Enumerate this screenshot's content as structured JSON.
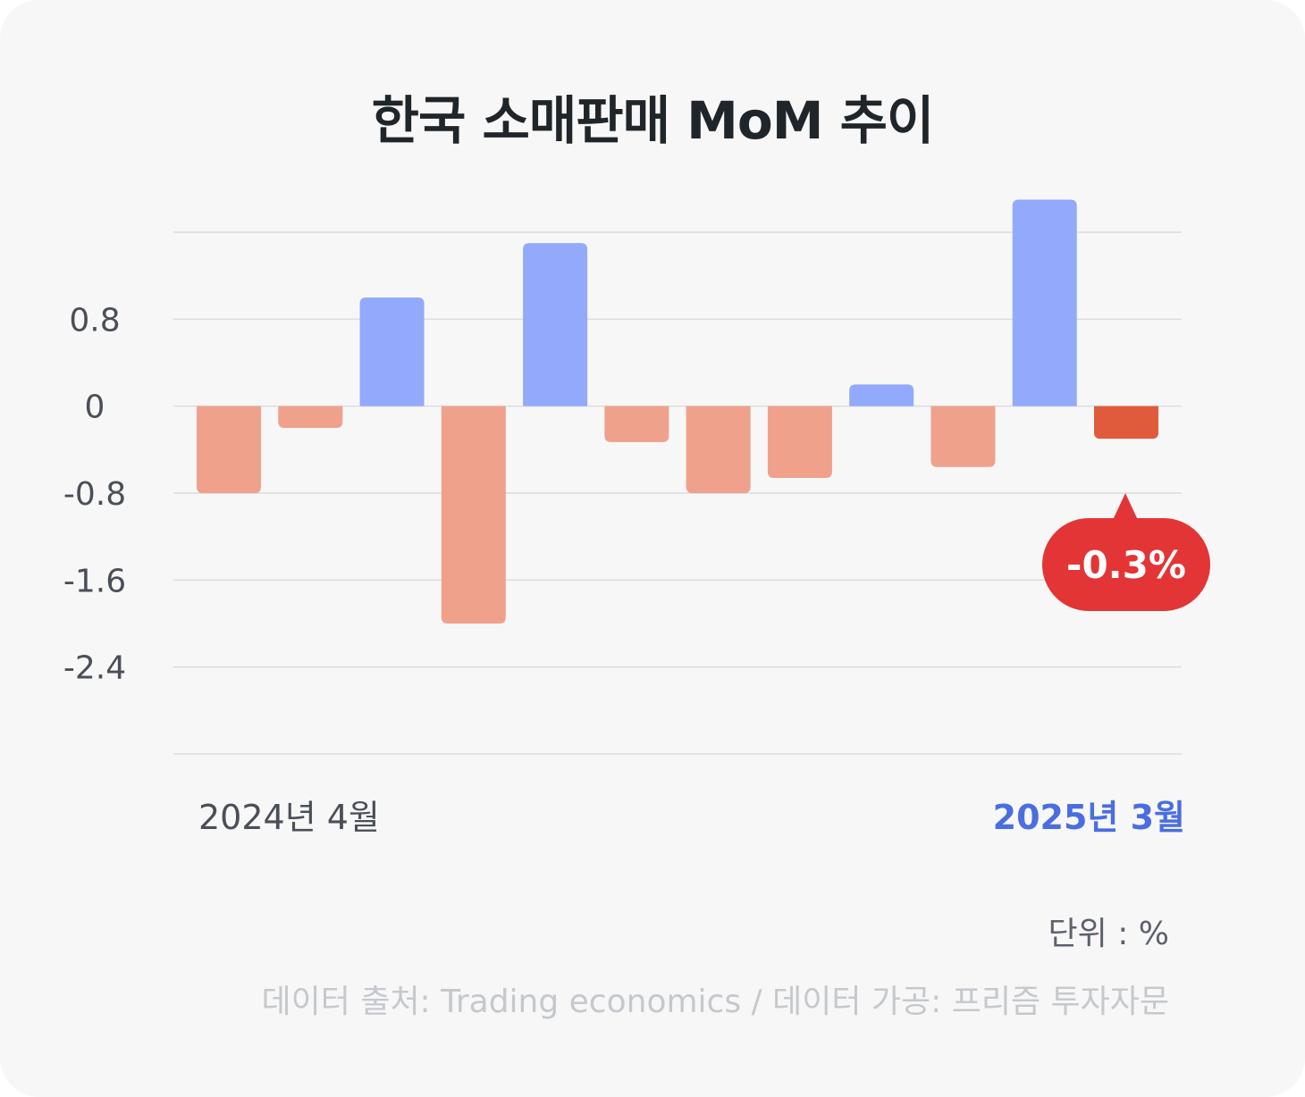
{
  "title": "한국 소매판매 MoM 추이",
  "colors": {
    "positive": "#93a9fb",
    "negative": "#efa18c",
    "highlight": "#df5b3b",
    "callout": "#e33535",
    "grid": "#dcdcdc",
    "accent_text": "#4a6ee0"
  },
  "chart_data": {
    "type": "bar",
    "categories": [
      "2024년 4월",
      "",
      "",
      "",
      "",
      "",
      "",
      "",
      "",
      "",
      "",
      "2025년 3월"
    ],
    "values": [
      -0.8,
      -0.2,
      1.0,
      -2.0,
      1.5,
      -0.33,
      -0.8,
      -0.66,
      0.2,
      -0.56,
      1.9,
      -0.3
    ],
    "highlight_index": 11,
    "yticks": [
      0.8,
      0,
      -0.8,
      -1.6,
      -2.4
    ],
    "ytick_labels": [
      "0.8",
      "0",
      "-0.8",
      "-1.6",
      "-2.4"
    ],
    "ylim": [
      -3.2,
      1.6
    ],
    "grid": true,
    "x_start_label": "2024년 4월",
    "x_end_label": "2025년 3월",
    "callout_label": "-0.3%"
  },
  "footer": {
    "unit": "단위 : %",
    "source": "데이터 출처: Trading economics / 데이터 가공: 프리즘 투자자문"
  }
}
